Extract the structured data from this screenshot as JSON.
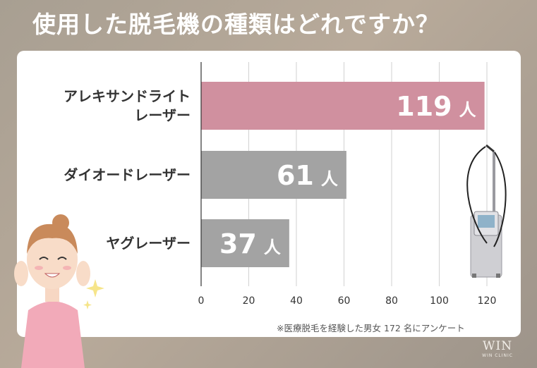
{
  "title": "使用した脱毛機の種類はどれですか？",
  "note": "※医療脱毛を経験した男女 172 名にアンケート",
  "logo": {
    "text": "WIN",
    "subtext": "WIN CLINIC"
  },
  "colors": {
    "highlight_bar": "#d0909f",
    "bar": "#a3a3a3",
    "panel": "#ffffff"
  },
  "chart_data": {
    "type": "bar",
    "orientation": "horizontal",
    "categories": [
      [
        "アレキサンドライト",
        "レーザー"
      ],
      [
        "ダイオードレーザー"
      ],
      [
        "ヤグレーザー"
      ]
    ],
    "values": [
      119,
      61,
      37
    ],
    "value_unit": "人",
    "xlim": [
      0,
      120
    ],
    "xticks": [
      0,
      20,
      40,
      60,
      80,
      100,
      120
    ],
    "grid": true
  }
}
